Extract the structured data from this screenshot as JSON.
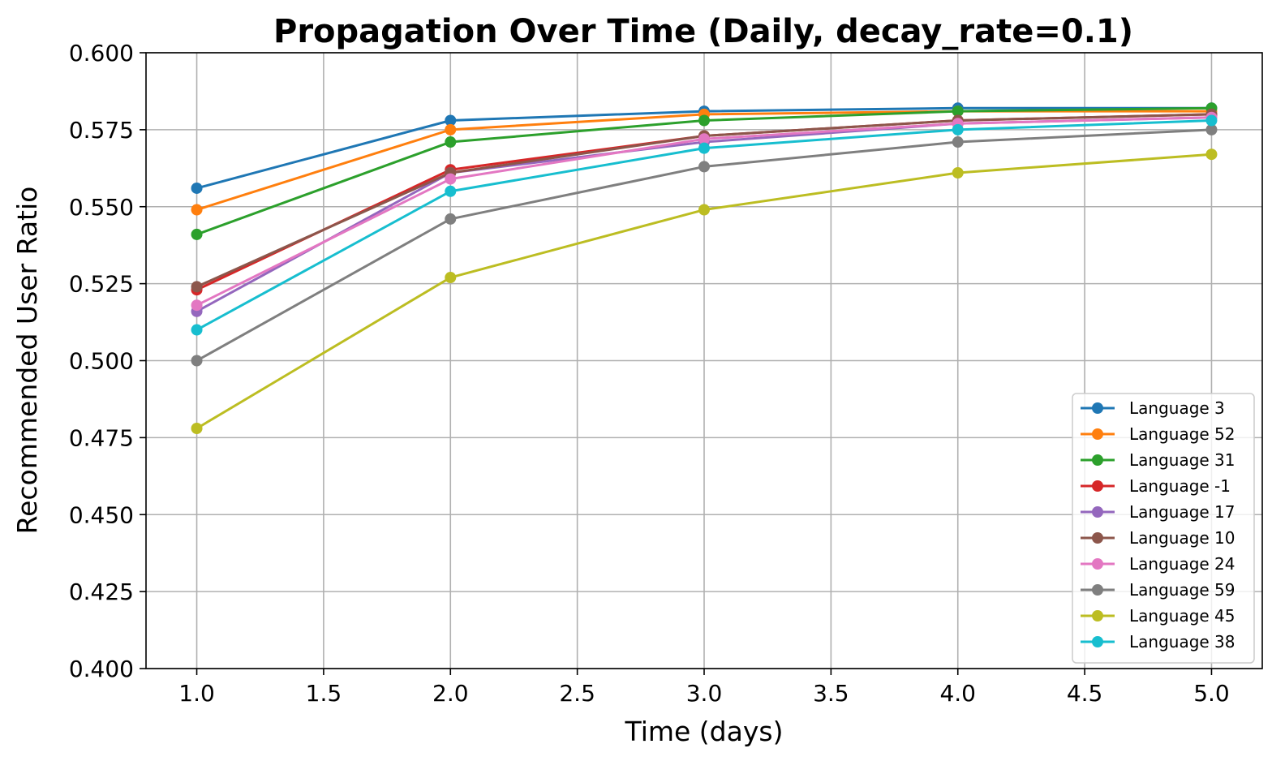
{
  "chart_data": {
    "type": "line",
    "title": "Propagation Over Time (Daily, decay_rate=0.1)",
    "xlabel": "Time (days)",
    "ylabel": "Recommended User Ratio",
    "xlim": [
      0.8,
      5.2
    ],
    "ylim": [
      0.4,
      0.6
    ],
    "xticks": [
      1.0,
      1.5,
      2.0,
      2.5,
      3.0,
      3.5,
      4.0,
      4.5,
      5.0
    ],
    "xtick_labels": [
      "1.0",
      "1.5",
      "2.0",
      "2.5",
      "3.0",
      "3.5",
      "4.0",
      "4.5",
      "5.0"
    ],
    "yticks": [
      0.4,
      0.425,
      0.45,
      0.475,
      0.5,
      0.525,
      0.55,
      0.575,
      0.6
    ],
    "ytick_labels": [
      "0.400",
      "0.425",
      "0.450",
      "0.475",
      "0.500",
      "0.525",
      "0.550",
      "0.575",
      "0.600"
    ],
    "grid": true,
    "legend_position": "lower-right",
    "x": [
      1.0,
      2.0,
      3.0,
      4.0,
      5.0
    ],
    "series": [
      {
        "name": "Language 3",
        "color": "#1f77b4",
        "values": [
          0.556,
          0.578,
          0.581,
          0.582,
          0.582
        ]
      },
      {
        "name": "Language 52",
        "color": "#ff7f0e",
        "values": [
          0.549,
          0.575,
          0.58,
          0.581,
          0.581
        ]
      },
      {
        "name": "Language 31",
        "color": "#2ca02c",
        "values": [
          0.541,
          0.571,
          0.578,
          0.581,
          0.582
        ]
      },
      {
        "name": "Language -1",
        "color": "#d62728",
        "values": [
          0.523,
          0.562,
          0.573,
          0.578,
          0.58
        ]
      },
      {
        "name": "Language 17",
        "color": "#9467bd",
        "values": [
          0.516,
          0.561,
          0.571,
          0.577,
          0.579
        ]
      },
      {
        "name": "Language 10",
        "color": "#8c564b",
        "values": [
          0.524,
          0.561,
          0.573,
          0.578,
          0.58
        ]
      },
      {
        "name": "Language 24",
        "color": "#e377c2",
        "values": [
          0.518,
          0.559,
          0.572,
          0.577,
          0.579
        ]
      },
      {
        "name": "Language 59",
        "color": "#7f7f7f",
        "values": [
          0.5,
          0.546,
          0.563,
          0.571,
          0.575
        ]
      },
      {
        "name": "Language 45",
        "color": "#bcbd22",
        "values": [
          0.478,
          0.527,
          0.549,
          0.561,
          0.567
        ]
      },
      {
        "name": "Language 38",
        "color": "#17becf",
        "values": [
          0.51,
          0.555,
          0.569,
          0.575,
          0.578
        ]
      }
    ]
  }
}
